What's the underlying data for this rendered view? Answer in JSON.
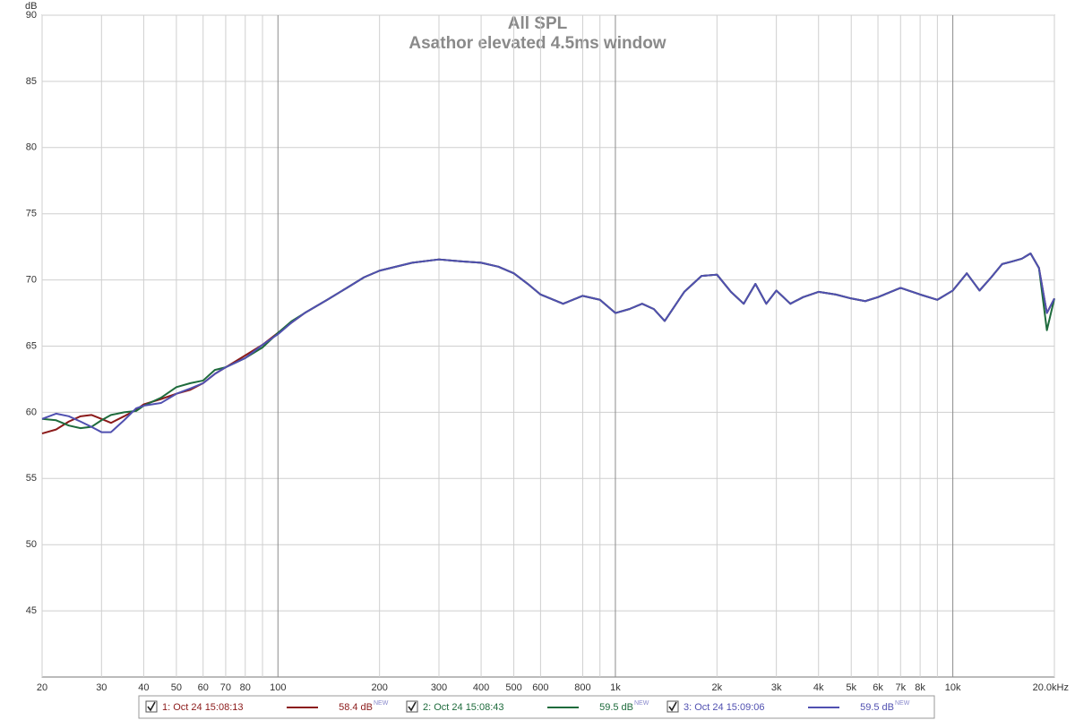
{
  "chart_data": {
    "type": "line",
    "title": "All SPL",
    "subtitle": "Asathor elevated 4.5ms window",
    "y_label": "dB",
    "log_x": true,
    "grid": true,
    "xlim": [
      20,
      20000
    ],
    "ylim": [
      40,
      90
    ],
    "yticks": [
      45,
      50,
      55,
      60,
      65,
      70,
      75,
      80,
      85,
      90
    ],
    "xticks": [
      20,
      30,
      40,
      50,
      60,
      70,
      80,
      100,
      200,
      300,
      400,
      500,
      600,
      800,
      {
        "value": 1000,
        "label": "1k"
      },
      {
        "value": 2000,
        "label": "2k"
      },
      {
        "value": 3000,
        "label": "3k"
      },
      {
        "value": 4000,
        "label": "4k"
      },
      {
        "value": 5000,
        "label": "5k"
      },
      {
        "value": 6000,
        "label": "6k"
      },
      {
        "value": 7000,
        "label": "7k"
      },
      {
        "value": 8000,
        "label": "8k"
      },
      {
        "value": 10000,
        "label": "10k"
      },
      {
        "value": 20000,
        "label": "20.0kHz"
      }
    ],
    "x_minor_grid": [
      90,
      900,
      9000
    ],
    "x": [
      20,
      22,
      24,
      26,
      28,
      30,
      32,
      35,
      38,
      40,
      45,
      50,
      55,
      60,
      65,
      70,
      80,
      90,
      100,
      110,
      120,
      140,
      160,
      180,
      200,
      250,
      300,
      350,
      400,
      450,
      500,
      550,
      600,
      700,
      800,
      900,
      1000,
      1100,
      1200,
      1300,
      1400,
      1600,
      1800,
      2000,
      2200,
      2400,
      2600,
      2800,
      3000,
      3300,
      3600,
      4000,
      4500,
      5000,
      5500,
      6000,
      7000,
      8000,
      9000,
      10000,
      11000,
      12000,
      13000,
      14000,
      15000,
      16000,
      17000,
      18000,
      19000,
      20000
    ],
    "series": [
      {
        "name": "1: Oct 24 15:08:13",
        "level": "58.4 dB",
        "badge": "NEW",
        "color": "#8b1a1a",
        "values": [
          58.4,
          58.7,
          59.3,
          59.7,
          59.8,
          59.5,
          59.2,
          59.7,
          60.2,
          60.6,
          61.0,
          61.4,
          61.7,
          62.2,
          62.9,
          63.4,
          64.3,
          65.1,
          66.0,
          66.8,
          67.5,
          68.5,
          69.4,
          70.2,
          70.7,
          71.3,
          71.55,
          71.4,
          71.3,
          71.0,
          70.5,
          69.7,
          68.9,
          68.2,
          68.8,
          68.5,
          67.5,
          67.8,
          68.2,
          67.8,
          66.9,
          69.1,
          70.3,
          70.4,
          69.1,
          68.2,
          69.7,
          68.2,
          69.2,
          68.2,
          68.7,
          69.1,
          68.9,
          68.6,
          68.4,
          68.7,
          69.4,
          68.9,
          68.5,
          69.2,
          70.5,
          69.2,
          70.2,
          71.2,
          71.4,
          71.6,
          72.0,
          70.9,
          67.5,
          68.6
        ]
      },
      {
        "name": "2: Oct 24 15:08:43",
        "level": "59.5 dB",
        "badge": "NEW",
        "color": "#1e6b3c",
        "values": [
          59.5,
          59.4,
          59.0,
          58.8,
          58.9,
          59.4,
          59.8,
          60.0,
          60.1,
          60.5,
          61.1,
          61.9,
          62.2,
          62.4,
          63.2,
          63.4,
          64.1,
          64.9,
          66.0,
          66.9,
          67.5,
          68.5,
          69.4,
          70.2,
          70.7,
          71.3,
          71.55,
          71.4,
          71.3,
          71.0,
          70.5,
          69.7,
          68.9,
          68.2,
          68.8,
          68.5,
          67.5,
          67.8,
          68.2,
          67.8,
          66.9,
          69.1,
          70.3,
          70.4,
          69.1,
          68.2,
          69.7,
          68.2,
          69.2,
          68.2,
          68.7,
          69.1,
          68.9,
          68.6,
          68.4,
          68.7,
          69.4,
          68.9,
          68.5,
          69.2,
          70.5,
          69.2,
          70.2,
          71.2,
          71.4,
          71.6,
          72.0,
          70.9,
          66.2,
          68.6
        ]
      },
      {
        "name": "3: Oct 24 15:09:06",
        "level": "59.5 dB",
        "badge": "NEW",
        "color": "#5050b0",
        "values": [
          59.5,
          59.9,
          59.7,
          59.3,
          58.9,
          58.5,
          58.5,
          59.4,
          60.3,
          60.5,
          60.7,
          61.4,
          61.8,
          62.2,
          62.9,
          63.4,
          64.1,
          65.1,
          65.9,
          66.8,
          67.5,
          68.5,
          69.4,
          70.2,
          70.7,
          71.3,
          71.55,
          71.4,
          71.3,
          71.0,
          70.5,
          69.7,
          68.9,
          68.2,
          68.8,
          68.5,
          67.5,
          67.8,
          68.2,
          67.8,
          66.9,
          69.1,
          70.3,
          70.4,
          69.1,
          68.2,
          69.7,
          68.2,
          69.2,
          68.2,
          68.7,
          69.1,
          68.9,
          68.6,
          68.4,
          68.7,
          69.4,
          68.9,
          68.5,
          69.2,
          70.5,
          69.2,
          70.2,
          71.2,
          71.4,
          71.6,
          72.0,
          70.9,
          67.5,
          68.6
        ]
      }
    ]
  }
}
